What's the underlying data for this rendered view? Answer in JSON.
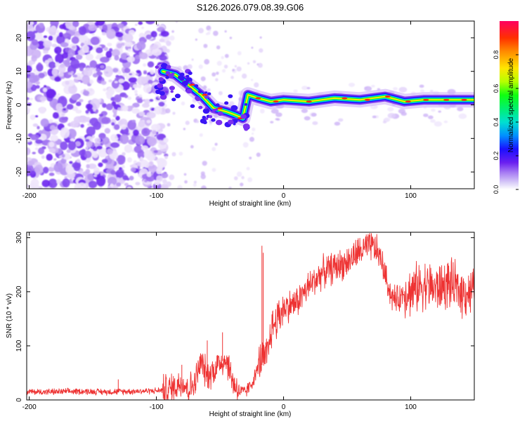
{
  "chart_data": [
    {
      "type": "heatmap",
      "title": "S126.2026.079.08.39.G06",
      "xlabel": "Height of straight line (km)",
      "ylabel": "Frequency (Hz)",
      "xlim": [
        -202,
        150
      ],
      "ylim": [
        -25,
        25
      ],
      "xticks": [
        -200,
        -100,
        0,
        100
      ],
      "yticks": [
        20,
        10,
        0,
        -10,
        -20
      ],
      "grid": false,
      "colorbar": {
        "label": "Normalized spectral amplitude",
        "ticks": [
          "0.0",
          "0.2",
          "0.4",
          "0.6",
          "0.8"
        ],
        "range": [
          0,
          1
        ],
        "colors": [
          "#ffffff",
          "#c9b6f5",
          "#7a2ff0",
          "#1a10ff",
          "#00b5ff",
          "#00e8a0",
          "#00ff33",
          "#b6ff00",
          "#ffe600",
          "#ff8a00",
          "#ff3000",
          "#ff0060"
        ]
      },
      "ridge": [
        {
          "x": -95,
          "y": 10
        },
        {
          "x": -85,
          "y": 9
        },
        {
          "x": -75,
          "y": 6
        },
        {
          "x": -65,
          "y": 3
        },
        {
          "x": -55,
          "y": -1
        },
        {
          "x": -45,
          "y": -2
        },
        {
          "x": -38,
          "y": -3
        },
        {
          "x": -32,
          "y": -4
        },
        {
          "x": -28,
          "y": 3
        },
        {
          "x": -20,
          "y": 2
        },
        {
          "x": -10,
          "y": 1
        },
        {
          "x": 0,
          "y": 1.5
        },
        {
          "x": 20,
          "y": 1
        },
        {
          "x": 40,
          "y": 2
        },
        {
          "x": 60,
          "y": 1.5
        },
        {
          "x": 80,
          "y": 2.5
        },
        {
          "x": 95,
          "y": 1
        },
        {
          "x": 110,
          "y": 1.5
        },
        {
          "x": 130,
          "y": 1.5
        },
        {
          "x": 150,
          "y": 1.5
        }
      ]
    },
    {
      "type": "line",
      "xlabel": "Height of straight line (km)",
      "ylabel": "SNR (10 * v/v)",
      "xlim": [
        -202,
        150
      ],
      "ylim": [
        0,
        310
      ],
      "xticks": [
        -200,
        -100,
        0,
        100
      ],
      "yticks": [
        0,
        100,
        200,
        300
      ],
      "grid": false,
      "series": [
        {
          "name": "SNR",
          "color": "#ee3333",
          "x": [
            -202,
            -180,
            -160,
            -140,
            -120,
            -100,
            -90,
            -85,
            -80,
            -75,
            -70,
            -65,
            -60,
            -55,
            -50,
            -45,
            -40,
            -35,
            -30,
            -25,
            -20,
            -17,
            -15,
            -12,
            -10,
            -5,
            0,
            10,
            20,
            30,
            40,
            50,
            55,
            60,
            65,
            70,
            75,
            78,
            80,
            85,
            90,
            95,
            100,
            110,
            120,
            130,
            140,
            150
          ],
          "y": [
            15,
            15,
            16,
            15,
            16,
            17,
            20,
            25,
            35,
            20,
            30,
            70,
            45,
            55,
            70,
            75,
            35,
            15,
            15,
            30,
            60,
            80,
            70,
            90,
            130,
            150,
            170,
            180,
            210,
            235,
            245,
            255,
            265,
            275,
            280,
            285,
            270,
            250,
            230,
            190,
            185,
            200,
            200,
            215,
            205,
            215,
            200,
            200
          ]
        }
      ],
      "spikes": [
        {
          "x": -17,
          "y": 285
        },
        {
          "x": -16,
          "y": 272
        },
        {
          "x": 68,
          "y": 305
        },
        {
          "x": 70,
          "y": 300
        },
        {
          "x": 63,
          "y": 298
        },
        {
          "x": -130,
          "y": 38
        },
        {
          "x": -80,
          "y": 65
        },
        {
          "x": -60,
          "y": 110
        },
        {
          "x": -48,
          "y": 125
        }
      ]
    }
  ]
}
